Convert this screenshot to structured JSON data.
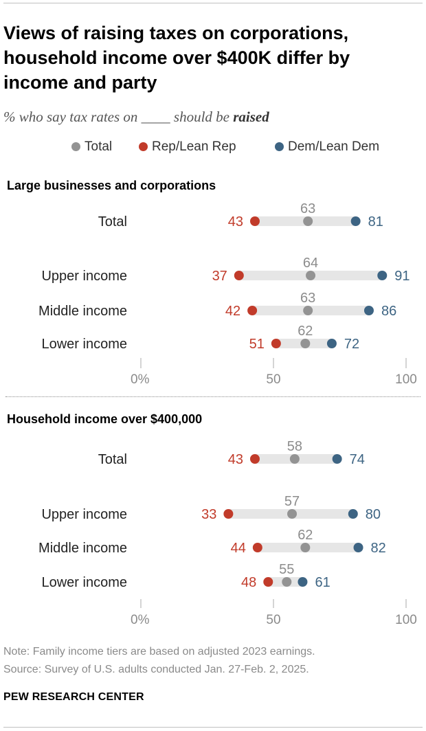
{
  "title": "Views of raising taxes on corporations, household income over $400K differ by income and party",
  "subtitle": {
    "prefix": "% who say tax rates on ____ should be ",
    "emphasis": "raised"
  },
  "legend": [
    {
      "label": "Total",
      "color": "#939393"
    },
    {
      "label": "Rep/Lean Rep",
      "color": "#c13b2a"
    },
    {
      "label": "Dem/Lean Dem",
      "color": "#3d6483"
    }
  ],
  "chart_data": {
    "type": "dot",
    "axis": {
      "min": 0,
      "max": 100,
      "ticks": [
        0,
        50,
        100
      ],
      "tick_labels": [
        "0%",
        "50",
        "100"
      ]
    },
    "series_names": [
      "Total",
      "Rep/Lean Rep",
      "Dem/Lean Dem"
    ],
    "panels": [
      {
        "title": "Large businesses and corporations",
        "rows": [
          {
            "label": "Total",
            "total": 63,
            "rep": 43,
            "dem": 81
          },
          {
            "label": "Upper income",
            "total": 64,
            "rep": 37,
            "dem": 91
          },
          {
            "label": "Middle income",
            "total": 63,
            "rep": 42,
            "dem": 86
          },
          {
            "label": "Lower income",
            "total": 62,
            "rep": 51,
            "dem": 72
          }
        ]
      },
      {
        "title": "Household income over $400,000",
        "rows": [
          {
            "label": "Total",
            "total": 58,
            "rep": 43,
            "dem": 74
          },
          {
            "label": "Upper income",
            "total": 57,
            "rep": 33,
            "dem": 80
          },
          {
            "label": "Middle income",
            "total": 62,
            "rep": 44,
            "dem": 82
          },
          {
            "label": "Lower income",
            "total": 55,
            "rep": 48,
            "dem": 61
          }
        ]
      }
    ]
  },
  "notes": {
    "note": "Note: Family income tiers are based on adjusted 2023 earnings.",
    "source": "Source: Survey of U.S. adults conducted Jan. 27-Feb. 2, 2025."
  },
  "brand": "PEW RESEARCH CENTER"
}
